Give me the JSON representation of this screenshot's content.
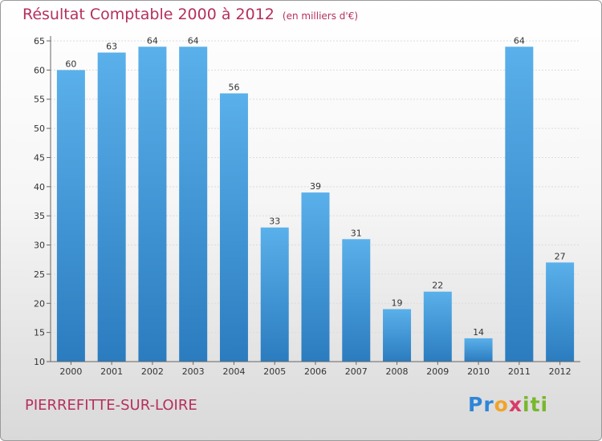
{
  "chart_data": {
    "type": "bar",
    "title": "Résultat Comptable 2000 à 2012",
    "subtitle": "(en milliers d'€)",
    "categories": [
      "2000",
      "2001",
      "2002",
      "2003",
      "2004",
      "2005",
      "2006",
      "2007",
      "2008",
      "2009",
      "2010",
      "2011",
      "2012"
    ],
    "values": [
      60,
      63,
      64,
      64,
      56,
      33,
      39,
      31,
      19,
      22,
      14,
      64,
      27
    ],
    "yticks": [
      "10",
      "15",
      "20",
      "25",
      "30",
      "35",
      "40",
      "45",
      "50",
      "55",
      "60",
      "65"
    ],
    "ylim": [
      10,
      65
    ],
    "grid": true,
    "xlabel": "",
    "ylabel": ""
  },
  "footer": {
    "city": "PIERREFITTE-SUR-LOIRE",
    "logo": [
      "P",
      "r",
      "o",
      "x",
      "i",
      "t",
      "i"
    ]
  },
  "colors": {
    "title": "#b5305c",
    "bar_top": "#5ab0ea",
    "bar_bottom": "#2b7cbf",
    "logo": [
      "#2e86d8",
      "#2e86d8",
      "#f0a42a",
      "#d93a6a",
      "#79b72d",
      "#79b72d",
      "#79b72d"
    ]
  }
}
